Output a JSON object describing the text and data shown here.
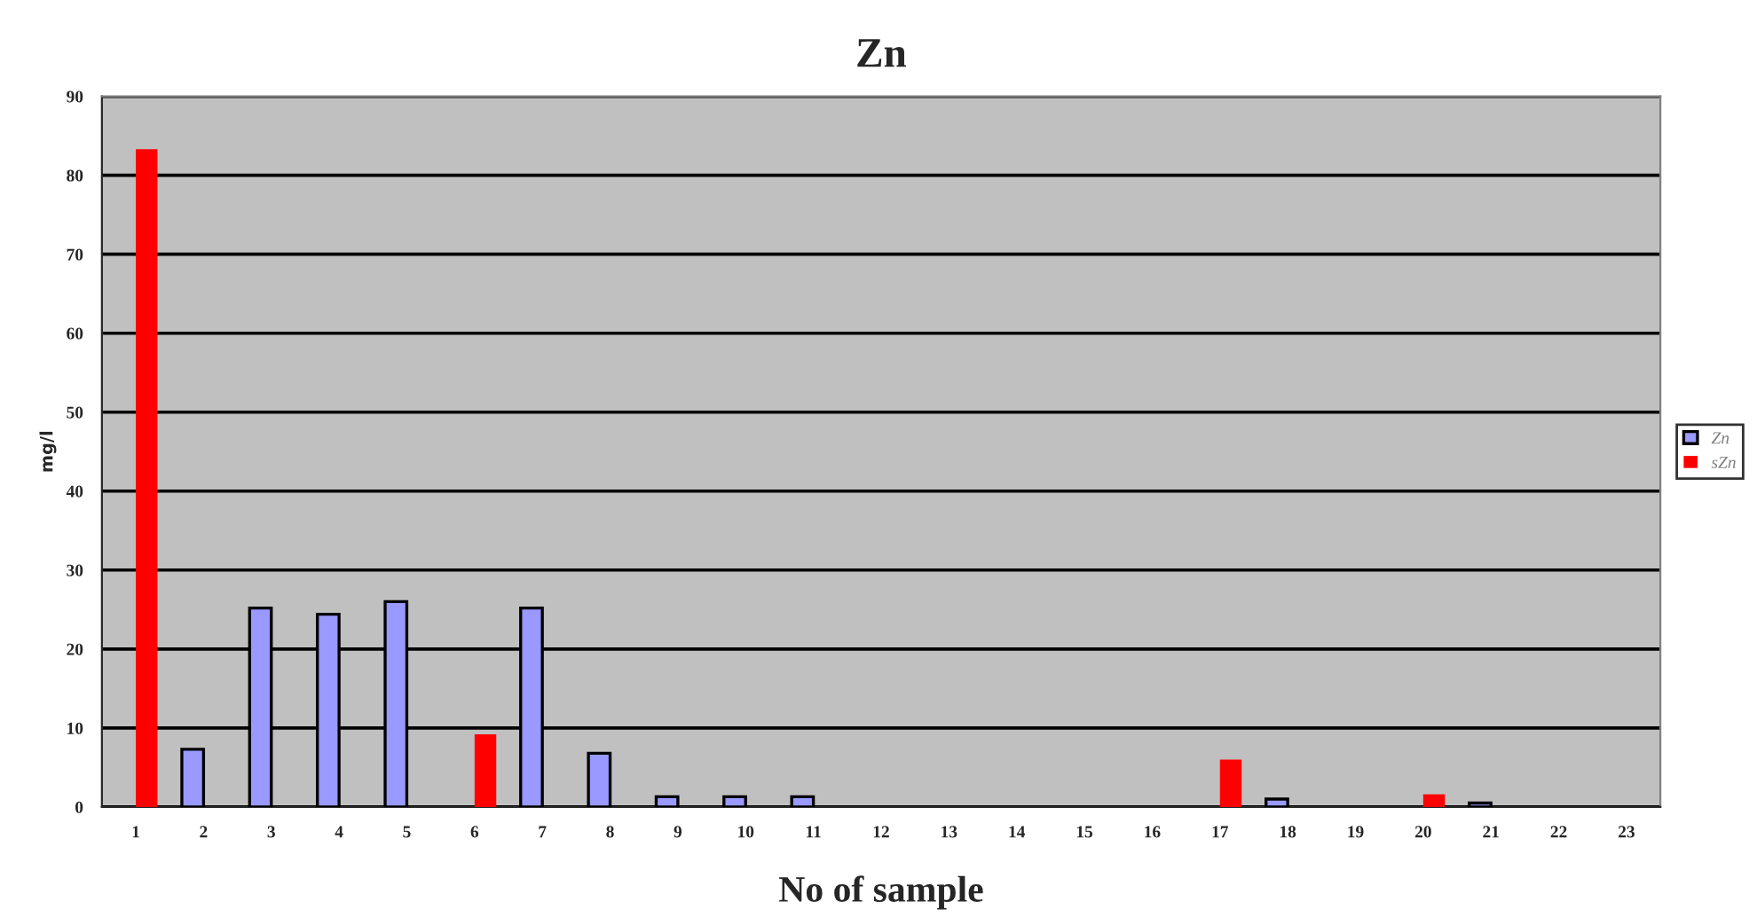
{
  "chart_data": {
    "type": "bar",
    "title": "Zn",
    "xlabel": "No of sample",
    "ylabel": "mg/l",
    "categories": [
      "1",
      "2",
      "3",
      "4",
      "5",
      "6",
      "7",
      "8",
      "9",
      "10",
      "11",
      "12",
      "13",
      "14",
      "15",
      "16",
      "17",
      "18",
      "19",
      "20",
      "21",
      "22",
      "23"
    ],
    "series": [
      {
        "name": "Zn",
        "color": "#9999ff",
        "values": [
          null,
          7.3,
          25.2,
          24.4,
          26,
          null,
          25.2,
          6.8,
          1.3,
          1.3,
          1.3,
          null,
          null,
          null,
          null,
          null,
          null,
          1,
          null,
          null,
          0.5,
          null,
          null
        ]
      },
      {
        "name": "sZn",
        "color": "#ff0000",
        "values": [
          83.3,
          null,
          null,
          null,
          null,
          9.2,
          null,
          null,
          null,
          null,
          null,
          null,
          null,
          null,
          null,
          null,
          6,
          null,
          null,
          1.6,
          null,
          null,
          null
        ]
      }
    ],
    "ylim": [
      0,
      90
    ],
    "yticks": [
      0,
      10,
      20,
      30,
      40,
      50,
      60,
      70,
      80,
      90
    ],
    "grid": "y",
    "legend": "right"
  }
}
